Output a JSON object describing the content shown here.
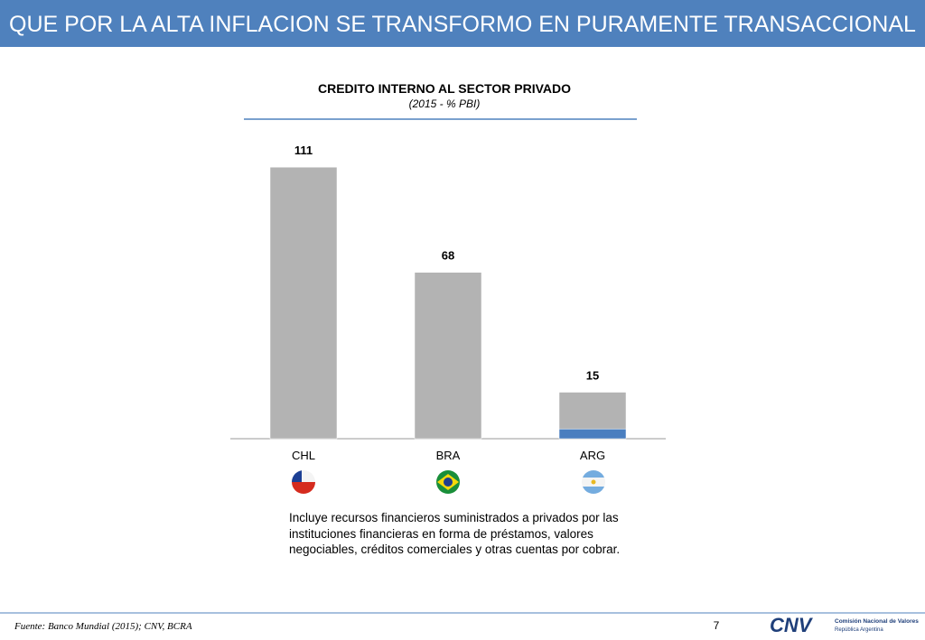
{
  "header": {
    "title": "QUE POR LA ALTA INFLACION SE TRANSFORMO EN PURAMENTE TRANSACCIONAL"
  },
  "chart_data": {
    "type": "bar",
    "stacked": true,
    "title": "CREDITO INTERNO AL SECTOR PRIVADO",
    "subtitle": "(2015 - % PBI)",
    "categories": [
      "CHL",
      "BRA",
      "ARG"
    ],
    "series": [
      {
        "color": "#4a7ebf",
        "values": [
          null,
          null,
          4
        ]
      },
      {
        "color": "#b3b3b3",
        "values": [
          111,
          68,
          15
        ]
      }
    ]
  },
  "note": "Incluye recursos financieros suministrados a privados por las instituciones financieras en forma de préstamos, valores negociables, créditos comerciales y otras cuentas por cobrar.",
  "footer": {
    "source": "Fuente: Banco Mundial (2015); CNV, BCRA",
    "page": "7",
    "logo": "CNV",
    "logo_line1": "Comisión Nacional de Valores",
    "logo_line2": "República Argentina"
  }
}
